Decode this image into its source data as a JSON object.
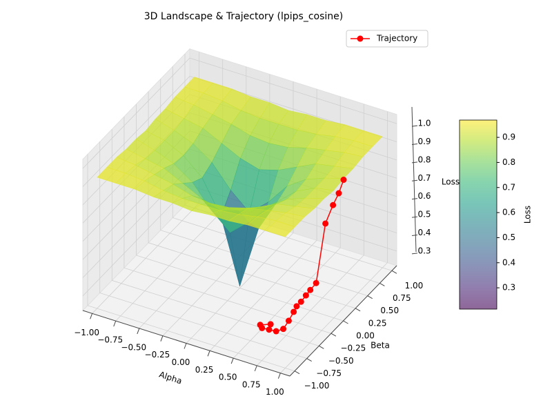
{
  "chart_data": {
    "type": "surface3d",
    "title": "3D Landscape & Trajectory (lpips_cosine)",
    "x_label": "Alpha",
    "y_label": "Beta",
    "z_label": "Loss",
    "colorbar_label": "Loss",
    "colormap": "viridis",
    "x": [
      -1.0,
      -0.8,
      -0.6,
      -0.4,
      -0.2,
      0.0,
      0.2,
      0.4,
      0.6,
      0.8,
      1.0
    ],
    "y": [
      -1.0,
      -0.8,
      -0.6,
      -0.4,
      -0.2,
      0.0,
      0.2,
      0.4,
      0.6,
      0.8,
      1.0
    ],
    "z": [
      [
        0.94,
        0.94,
        0.94,
        0.93,
        0.93,
        0.92,
        0.93,
        0.93,
        0.94,
        0.94,
        0.94
      ],
      [
        0.94,
        0.94,
        0.93,
        0.91,
        0.9,
        0.9,
        0.9,
        0.91,
        0.93,
        0.94,
        0.94
      ],
      [
        0.94,
        0.93,
        0.91,
        0.89,
        0.86,
        0.85,
        0.86,
        0.89,
        0.91,
        0.93,
        0.94
      ],
      [
        0.93,
        0.91,
        0.89,
        0.84,
        0.79,
        0.76,
        0.79,
        0.84,
        0.89,
        0.91,
        0.93
      ],
      [
        0.93,
        0.9,
        0.86,
        0.79,
        0.67,
        0.58,
        0.67,
        0.79,
        0.86,
        0.9,
        0.93
      ],
      [
        0.92,
        0.9,
        0.85,
        0.76,
        0.58,
        0.23,
        0.58,
        0.76,
        0.85,
        0.9,
        0.92
      ],
      [
        0.93,
        0.9,
        0.86,
        0.79,
        0.67,
        0.58,
        0.67,
        0.79,
        0.86,
        0.9,
        0.93
      ],
      [
        0.93,
        0.91,
        0.89,
        0.84,
        0.79,
        0.76,
        0.79,
        0.84,
        0.89,
        0.91,
        0.93
      ],
      [
        0.94,
        0.93,
        0.91,
        0.89,
        0.86,
        0.85,
        0.86,
        0.89,
        0.91,
        0.93,
        0.94
      ],
      [
        0.94,
        0.94,
        0.93,
        0.91,
        0.9,
        0.9,
        0.9,
        0.91,
        0.93,
        0.94,
        0.94
      ],
      [
        0.94,
        0.94,
        0.94,
        0.93,
        0.93,
        0.92,
        0.93,
        0.93,
        0.94,
        0.94,
        0.94
      ]
    ],
    "series": [
      {
        "name": "Trajectory",
        "color": "#ff0000",
        "x": [
          0.68,
          0.675,
          0.65,
          0.59,
          0.61,
          0.61,
          0.61,
          0.62,
          0.62,
          0.64,
          0.67,
          0.69,
          0.65,
          0.58,
          0.51,
          0.47,
          0.55
        ],
        "y": [
          0.82,
          0.73,
          0.66,
          0.62,
          0.39,
          0.27,
          0.18,
          0.06,
          -0.03,
          -0.13,
          -0.29,
          -0.44,
          -0.51,
          -0.52,
          -0.53,
          -0.49,
          -0.43
        ],
        "values": [
          0.7,
          0.65,
          0.6,
          0.5,
          0.24,
          0.235,
          0.23,
          0.23,
          0.23,
          0.23,
          0.23,
          0.23,
          0.23,
          0.23,
          0.23,
          0.23,
          0.23
        ]
      }
    ],
    "xlim": [
      -1.1,
      1.1
    ],
    "ylim": [
      -1.1,
      1.1
    ],
    "zlim": [
      0.22,
      1.05
    ],
    "xticks": [
      {
        "value": -1.0,
        "label": "−1.00"
      },
      {
        "value": -0.75,
        "label": "−0.75"
      },
      {
        "value": -0.5,
        "label": "−0.50"
      },
      {
        "value": -0.25,
        "label": "−0.25"
      },
      {
        "value": 0,
        "label": "0.00"
      },
      {
        "value": 0.25,
        "label": "0.25"
      },
      {
        "value": 0.5,
        "label": "0.50"
      },
      {
        "value": 0.75,
        "label": "0.75"
      },
      {
        "value": 1.0,
        "label": "1.00"
      }
    ],
    "yticks": [
      {
        "value": -1.0,
        "label": "−1.00"
      },
      {
        "value": -0.75,
        "label": "−0.75"
      },
      {
        "value": -0.5,
        "label": "−0.50"
      },
      {
        "value": -0.25,
        "label": "−0.25"
      },
      {
        "value": 0,
        "label": "0.00"
      },
      {
        "value": 0.25,
        "label": "0.25"
      },
      {
        "value": 0.5,
        "label": "0.50"
      },
      {
        "value": 0.75,
        "label": "0.75"
      },
      {
        "value": 1.0,
        "label": "1.00"
      }
    ],
    "zticks": [
      0.3,
      0.4,
      0.5,
      0.6,
      0.7,
      0.8,
      0.9,
      {
        "value": 1.0,
        "label": "1.0"
      }
    ],
    "clim": [
      0.215,
      0.969
    ],
    "cticks": [
      0.3,
      0.4,
      0.5,
      0.6,
      0.7,
      0.8,
      0.9
    ],
    "legend": "upper right",
    "grid": true
  }
}
